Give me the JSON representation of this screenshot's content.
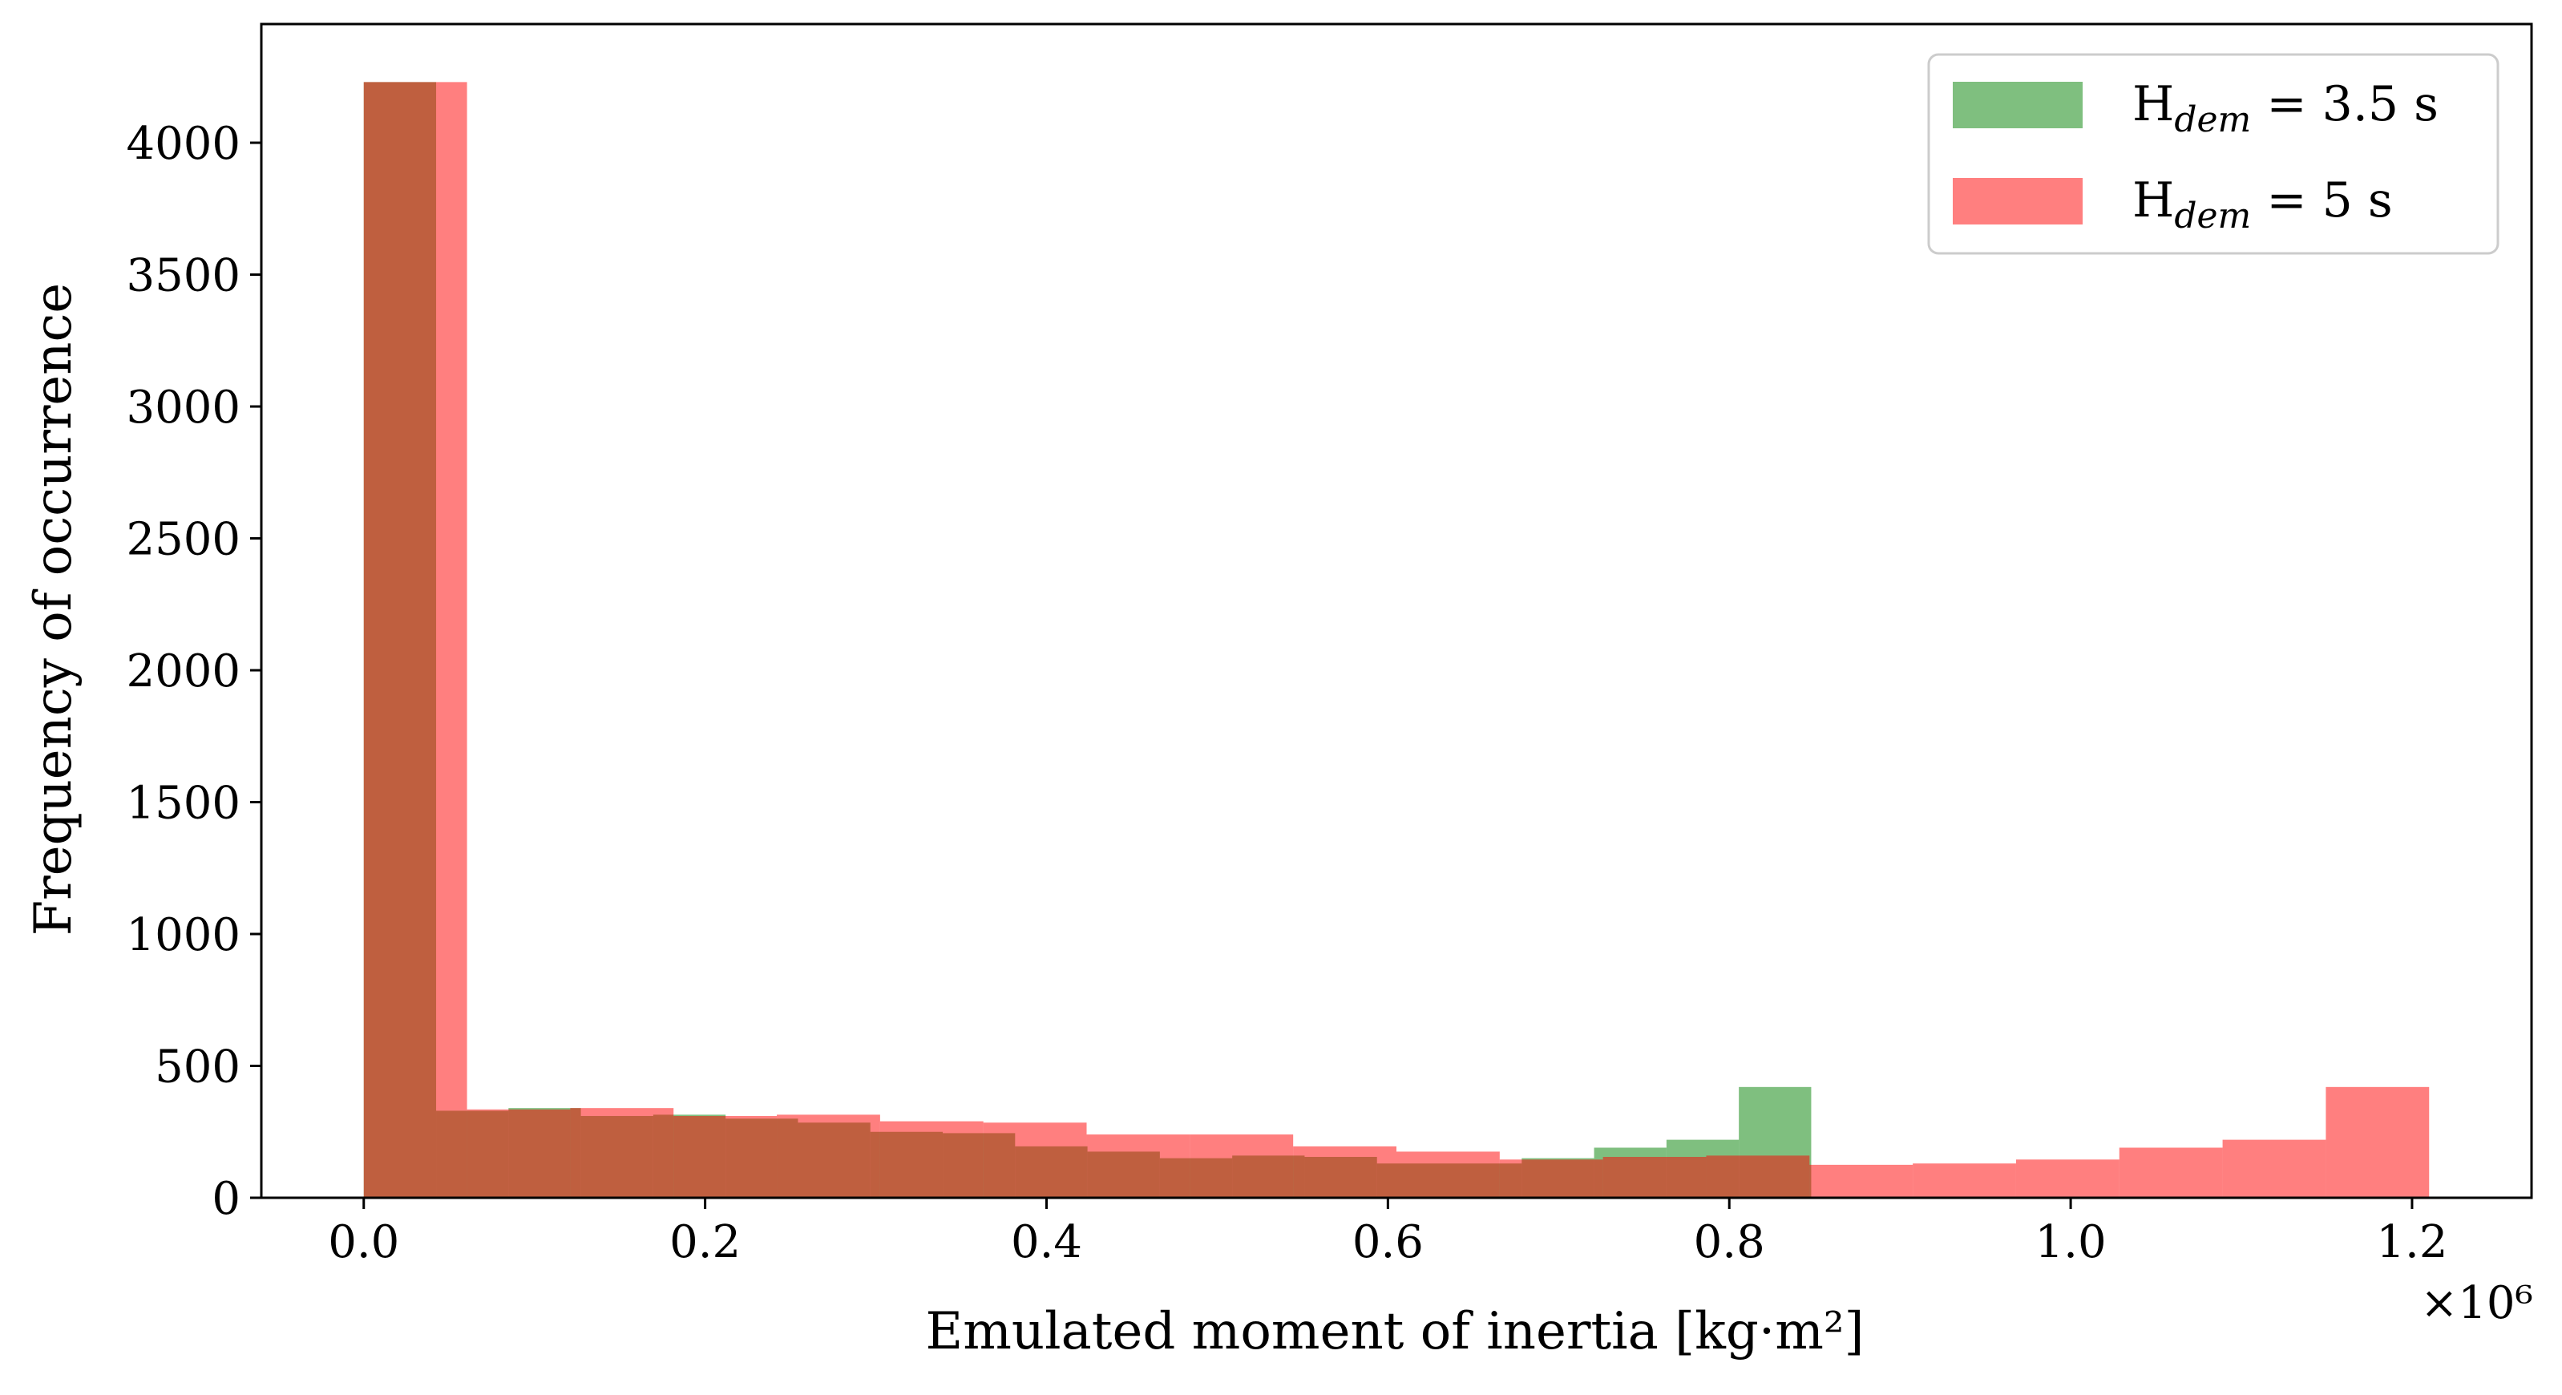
{
  "chart_data": {
    "type": "bar",
    "histogram": true,
    "xlabel": "Emulated moment of inertia [kg·m²]",
    "ylabel": "Frequency of occurrence",
    "x_multiplier": "×10⁶",
    "xlim": [
      -0.06,
      1.27
    ],
    "ylim": [
      0,
      4450
    ],
    "xticks": [
      0.0,
      0.2,
      0.4,
      0.6,
      0.8,
      1.0,
      1.2
    ],
    "xtick_labels": [
      "0.0",
      "0.2",
      "0.4",
      "0.6",
      "0.8",
      "1.0",
      "1.2"
    ],
    "yticks": [
      0,
      500,
      1000,
      1500,
      2000,
      2500,
      3000,
      3500,
      4000
    ],
    "ytick_labels": [
      "0",
      "500",
      "1000",
      "1500",
      "2000",
      "2500",
      "3000",
      "3500",
      "4000"
    ],
    "grid": false,
    "legend_position": "top-right",
    "series": [
      {
        "name": "H_dem = 3.5 s",
        "legend_main": "H",
        "legend_sub": "dem",
        "legend_tail": " = 3.5 s",
        "color": "#008000",
        "opacity": 0.5,
        "bin_edges": [
          0.0,
          0.0424,
          0.0848,
          0.1272,
          0.1696,
          0.212,
          0.2544,
          0.2968,
          0.3392,
          0.3816,
          0.424,
          0.4664,
          0.5088,
          0.5512,
          0.5936,
          0.636,
          0.6784,
          0.7208,
          0.7632,
          0.8056,
          0.848
        ],
        "values": [
          4230,
          330,
          340,
          310,
          315,
          300,
          285,
          250,
          245,
          195,
          175,
          150,
          160,
          155,
          130,
          130,
          150,
          190,
          220,
          420
        ]
      },
      {
        "name": "H_dem = 5 s",
        "legend_main": "H",
        "legend_sub": "dem",
        "legend_tail": " = 5 s",
        "color": "#ff0000",
        "opacity": 0.5,
        "bin_edges": [
          0.0,
          0.0605,
          0.121,
          0.1815,
          0.242,
          0.3025,
          0.363,
          0.4235,
          0.484,
          0.5445,
          0.605,
          0.6655,
          0.726,
          0.7865,
          0.847,
          0.9075,
          0.968,
          1.0285,
          1.089,
          1.1495,
          1.21
        ],
        "values": [
          4230,
          335,
          340,
          310,
          315,
          290,
          285,
          240,
          240,
          195,
          175,
          145,
          155,
          160,
          125,
          130,
          145,
          190,
          220,
          420
        ]
      }
    ]
  }
}
